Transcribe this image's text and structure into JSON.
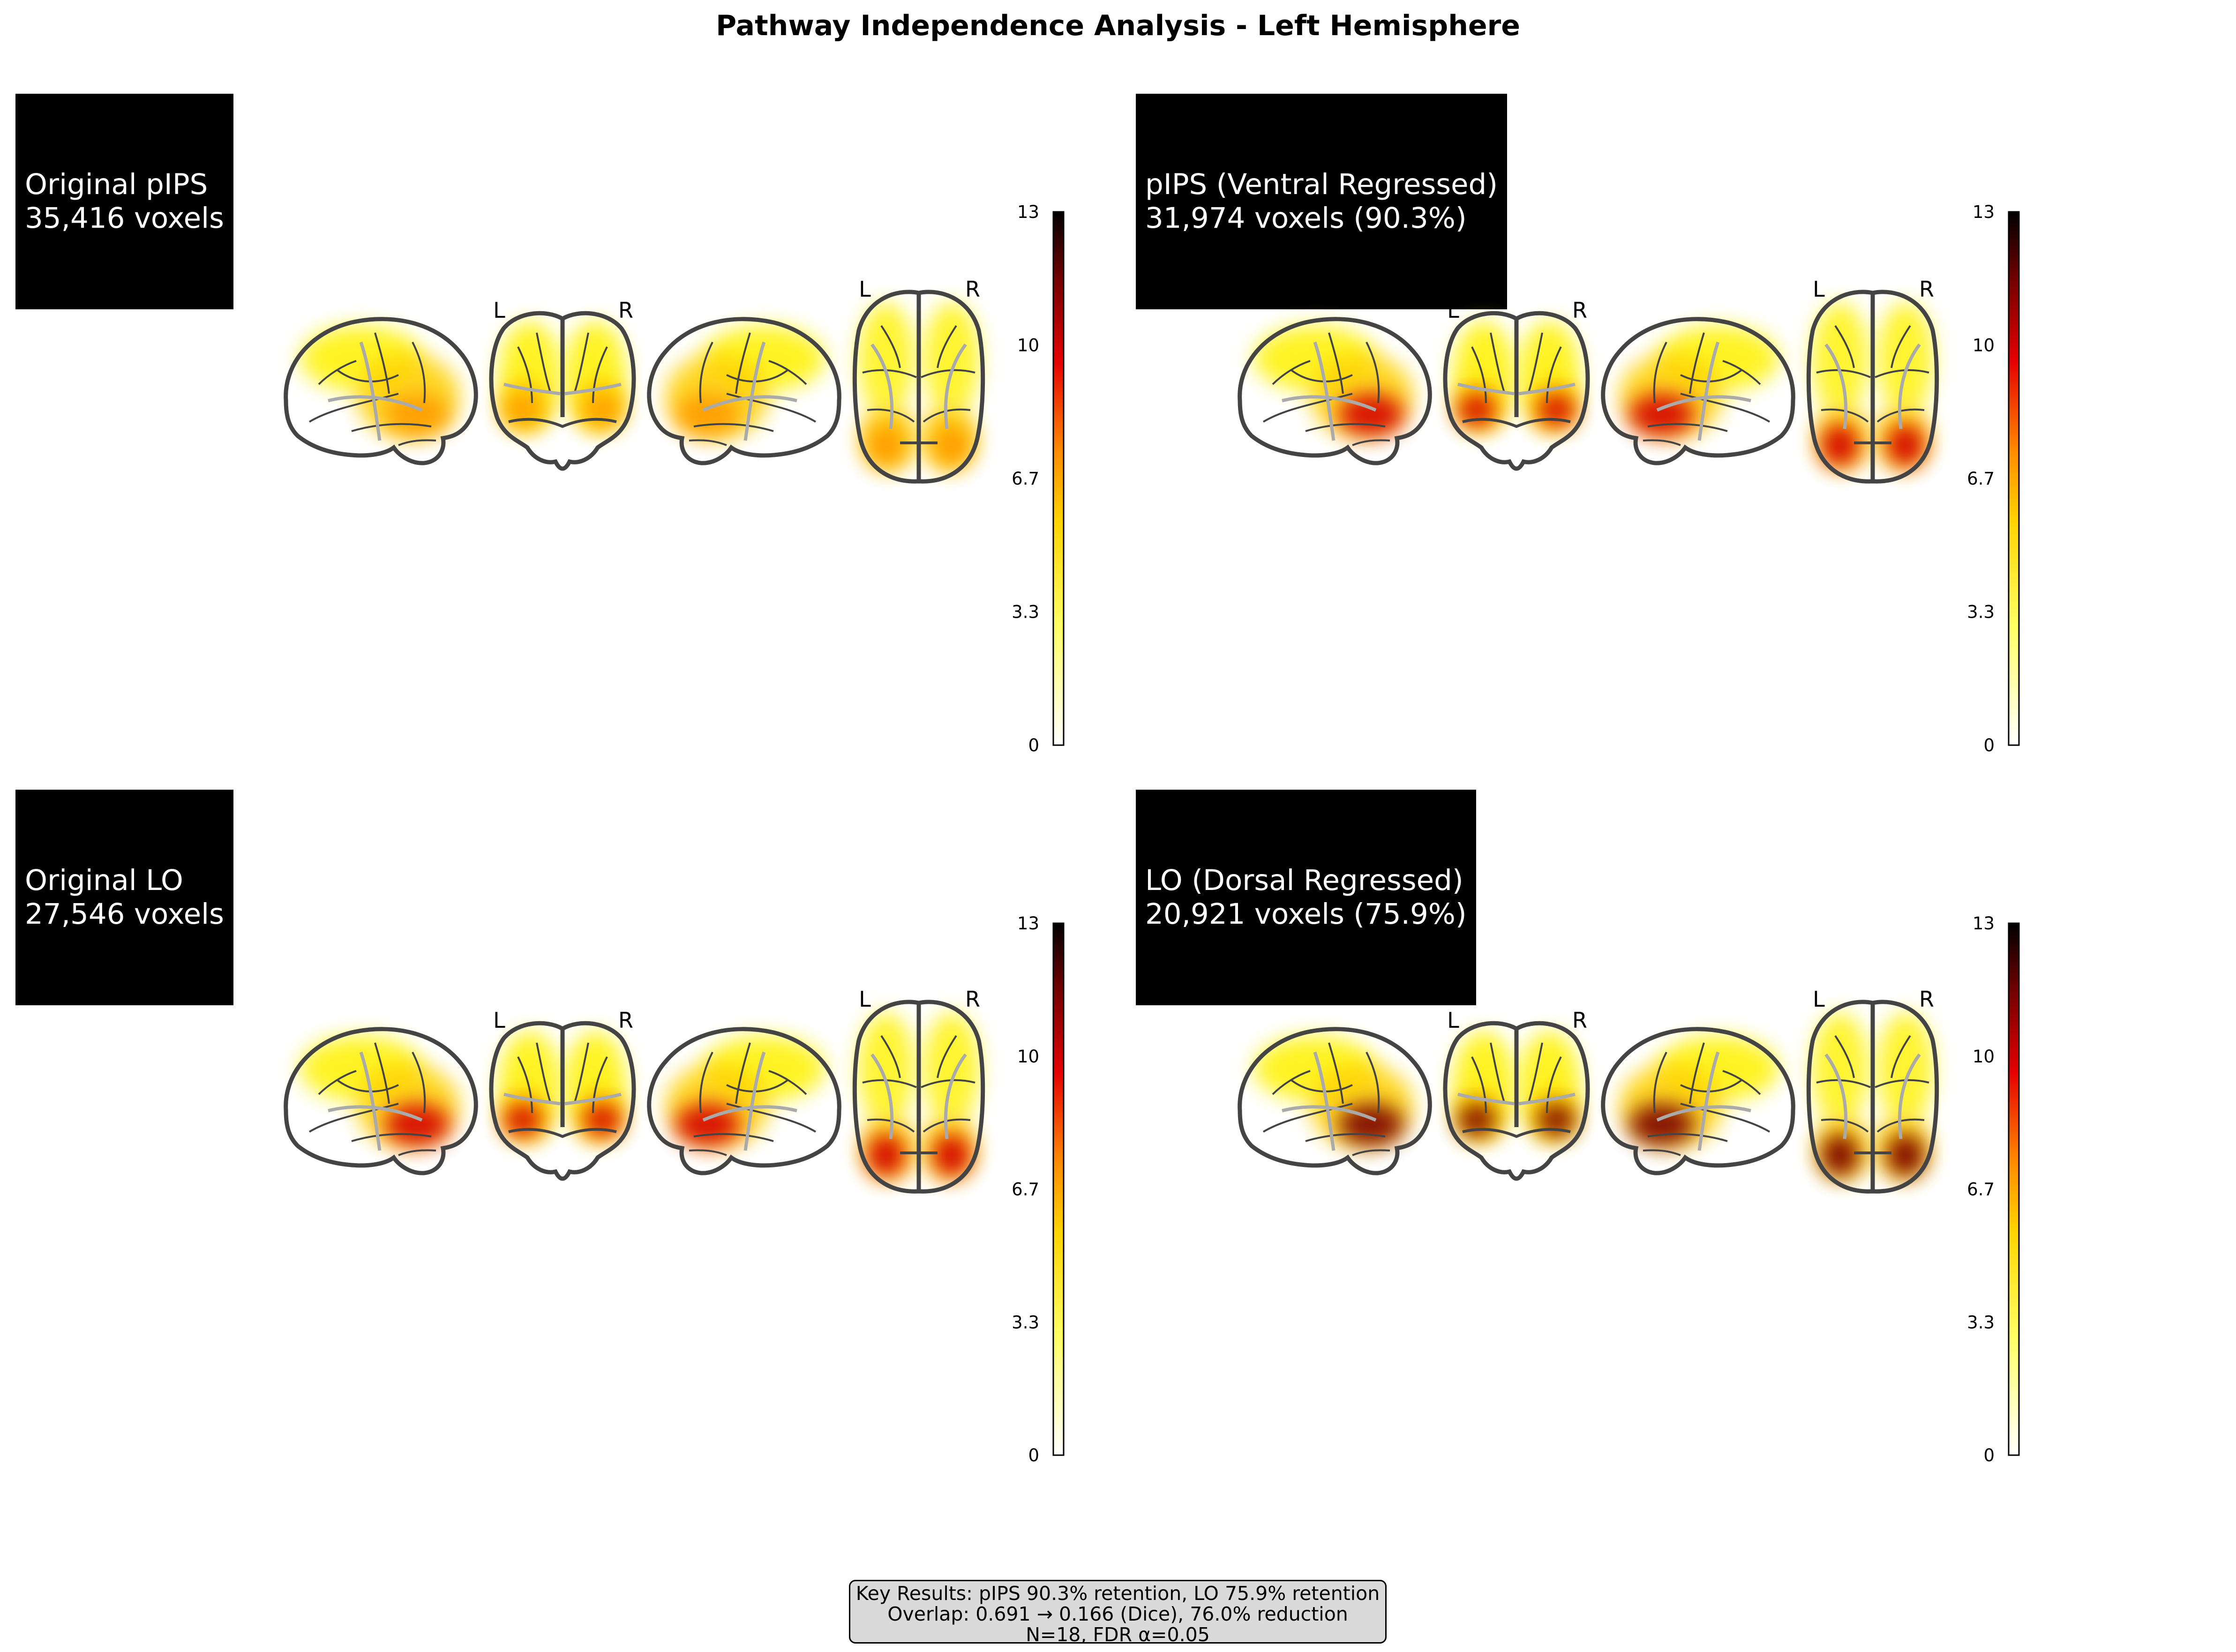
{
  "figure": {
    "title": "Pathway Independence Analysis - Left Hemisphere"
  },
  "panels": [
    {
      "id": "original-pips",
      "label_line1": "Original pIPS",
      "label_line2": "35,416 voxels",
      "orientation_left": "L",
      "orientation_right": "R",
      "activation_peak_level": 0.6
    },
    {
      "id": "pips-ventral-regressed",
      "label_line1": "pIPS (Ventral Regressed)",
      "label_line2": "31,974 voxels (90.3%)",
      "orientation_left": "L",
      "orientation_right": "R",
      "activation_peak_level": 0.78
    },
    {
      "id": "original-lo",
      "label_line1": "Original LO",
      "label_line2": "27,546 voxels",
      "orientation_left": "L",
      "orientation_right": "R",
      "activation_peak_level": 0.8
    },
    {
      "id": "lo-dorsal-regressed",
      "label_line1": "LO (Dorsal Regressed)",
      "label_line2": "20,921 voxels (75.9%)",
      "orientation_left": "L",
      "orientation_right": "R",
      "activation_peak_level": 1.0
    }
  ],
  "colorbar": {
    "colormap": "cold_hot (white-yellow-red-black)",
    "min": 0,
    "max": 13,
    "ticks": [
      "0",
      "3.3",
      "6.7",
      "10",
      "13"
    ]
  },
  "footer": {
    "line1": "Key Results: pIPS 90.3% retention, LO 75.9% retention",
    "line2": "Overlap: 0.691 → 0.166 (Dice), 76.0% reduction",
    "line3": "N=18, FDR α=0.05"
  }
}
